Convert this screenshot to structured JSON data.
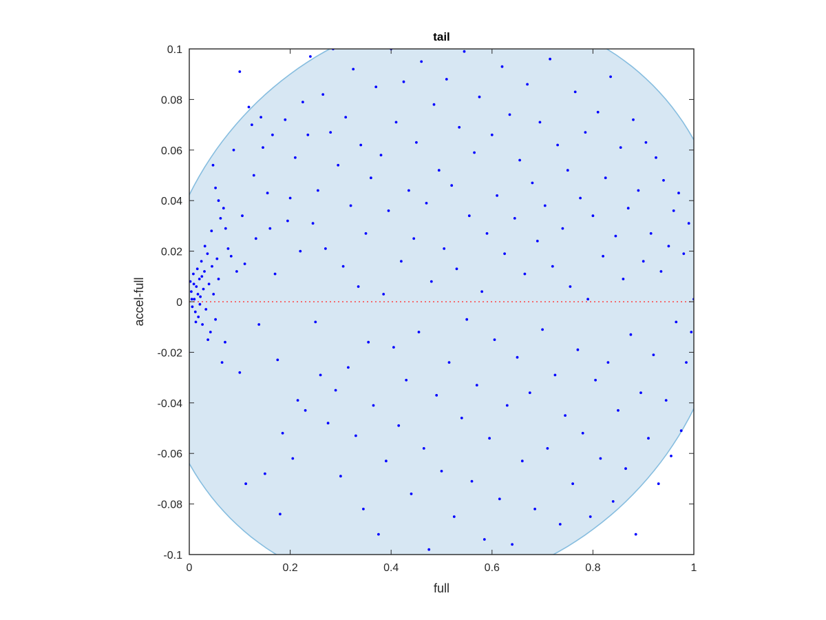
{
  "chart_data": {
    "type": "scatter",
    "title": "tail",
    "xlabel": "full",
    "ylabel": "accel-full",
    "xlim": [
      0,
      1
    ],
    "ylim": [
      -0.1,
      0.1
    ],
    "x_ticks": [
      "0",
      "0.2",
      "0.4",
      "0.6",
      "0.8",
      "1"
    ],
    "y_ticks": [
      "-0.1",
      "-0.08",
      "-0.06",
      "-0.04",
      "-0.02",
      "0",
      "0.02",
      "0.04",
      "0.06",
      "0.08",
      "0.1"
    ],
    "grid": false,
    "legend": "none",
    "colors": {
      "points": "#0000ff",
      "region_fill": "#d7e7f3",
      "region_edge": "#86bddf",
      "zero_line": "#ff4040"
    },
    "reference_line": {
      "y": 0,
      "style": "dotted"
    },
    "region": {
      "shape": "ellipse",
      "center": [
        0.5,
        0
      ],
      "semi_axis_x": 0.54,
      "semi_axis_y": 0.12,
      "tilt_note": "tilted, passes (0, 0.06), (0.28, -0.1), (1, -0.06), (0.71, 0.1)"
    },
    "series": [
      {
        "points": [
          [
            0.002,
            0.008
          ],
          [
            0.004,
            0.004
          ],
          [
            0.006,
            -0.002
          ],
          [
            0.008,
            0.011
          ],
          [
            0.01,
            0.001
          ],
          [
            0.012,
            -0.004
          ],
          [
            0.014,
            0.006
          ],
          [
            0.016,
            0.013
          ],
          [
            0.018,
            -0.006
          ],
          [
            0.02,
            0.009
          ],
          [
            0.022,
            0.002
          ],
          [
            0.024,
            0.016
          ],
          [
            0.026,
            -0.009
          ],
          [
            0.028,
            0.005
          ],
          [
            0.03,
            0.012
          ],
          [
            0.033,
            -0.003
          ],
          [
            0.036,
            0.019
          ],
          [
            0.039,
            0.007
          ],
          [
            0.042,
            -0.012
          ],
          [
            0.045,
            0.014
          ],
          [
            0.048,
            0.003
          ],
          [
            0.052,
            -0.007
          ],
          [
            0.055,
            0.017
          ],
          [
            0.058,
            0.009
          ],
          [
            0.005,
            0.001
          ],
          [
            0.009,
            0.007
          ],
          [
            0.013,
            -0.008
          ],
          [
            0.017,
            0.003
          ],
          [
            0.021,
            -0.001
          ],
          [
            0.025,
            0.01
          ],
          [
            0.031,
            0.022
          ],
          [
            0.037,
            -0.015
          ],
          [
            0.044,
            0.028
          ],
          [
            0.047,
            0.054
          ],
          [
            0.052,
            0.045
          ],
          [
            0.058,
            0.04
          ],
          [
            0.062,
            0.033
          ],
          [
            0.068,
            0.037
          ],
          [
            0.072,
            0.029
          ],
          [
            0.065,
            -0.024
          ],
          [
            0.071,
            -0.016
          ],
          [
            0.077,
            0.021
          ],
          [
            0.083,
            0.018
          ],
          [
            0.088,
            0.06
          ],
          [
            0.094,
            0.012
          ],
          [
            0.1,
            -0.028
          ],
          [
            0.1,
            0.091
          ],
          [
            0.105,
            0.034
          ],
          [
            0.11,
            0.015
          ],
          [
            0.112,
            -0.072
          ],
          [
            0.118,
            0.077
          ],
          [
            0.124,
            0.07
          ],
          [
            0.128,
            0.05
          ],
          [
            0.132,
            0.025
          ],
          [
            0.138,
            -0.009
          ],
          [
            0.142,
            0.073
          ],
          [
            0.146,
            0.061
          ],
          [
            0.15,
            -0.068
          ],
          [
            0.155,
            0.043
          ],
          [
            0.16,
            0.029
          ],
          [
            0.165,
            0.066
          ],
          [
            0.17,
            0.011
          ],
          [
            0.175,
            -0.023
          ],
          [
            0.18,
            -0.084
          ],
          [
            0.185,
            -0.052
          ],
          [
            0.19,
            0.072
          ],
          [
            0.195,
            0.032
          ],
          [
            0.2,
            0.041
          ],
          [
            0.205,
            -0.062
          ],
          [
            0.21,
            0.057
          ],
          [
            0.215,
            -0.039
          ],
          [
            0.22,
            0.02
          ],
          [
            0.225,
            0.079
          ],
          [
            0.23,
            -0.043
          ],
          [
            0.235,
            0.066
          ],
          [
            0.24,
            0.097
          ],
          [
            0.245,
            0.031
          ],
          [
            0.25,
            -0.008
          ],
          [
            0.255,
            0.044
          ],
          [
            0.26,
            -0.029
          ],
          [
            0.265,
            0.082
          ],
          [
            0.27,
            0.021
          ],
          [
            0.275,
            -0.048
          ],
          [
            0.28,
            0.067
          ],
          [
            0.285,
            0.1
          ],
          [
            0.29,
            -0.035
          ],
          [
            0.295,
            0.054
          ],
          [
            0.3,
            -0.069
          ],
          [
            0.305,
            0.014
          ],
          [
            0.31,
            0.073
          ],
          [
            0.315,
            -0.026
          ],
          [
            0.32,
            0.038
          ],
          [
            0.325,
            0.092
          ],
          [
            0.33,
            -0.053
          ],
          [
            0.335,
            0.006
          ],
          [
            0.34,
            0.062
          ],
          [
            0.345,
            -0.082
          ],
          [
            0.35,
            0.027
          ],
          [
            0.355,
            -0.016
          ],
          [
            0.36,
            0.049
          ],
          [
            0.365,
            -0.041
          ],
          [
            0.37,
            0.085
          ],
          [
            0.375,
            -0.092
          ],
          [
            0.38,
            0.058
          ],
          [
            0.385,
            0.003
          ],
          [
            0.39,
            -0.063
          ],
          [
            0.395,
            0.036
          ],
          [
            0.4,
            0.1
          ],
          [
            0.405,
            -0.018
          ],
          [
            0.41,
            0.071
          ],
          [
            0.415,
            -0.049
          ],
          [
            0.42,
            0.016
          ],
          [
            0.425,
            0.087
          ],
          [
            0.43,
            -0.031
          ],
          [
            0.435,
            0.044
          ],
          [
            0.44,
            -0.076
          ],
          [
            0.445,
            0.025
          ],
          [
            0.45,
            0.063
          ],
          [
            0.455,
            -0.012
          ],
          [
            0.46,
            0.095
          ],
          [
            0.465,
            -0.058
          ],
          [
            0.47,
            0.039
          ],
          [
            0.475,
            -0.098
          ],
          [
            0.48,
            0.008
          ],
          [
            0.485,
            0.078
          ],
          [
            0.49,
            -0.037
          ],
          [
            0.495,
            0.052
          ],
          [
            0.5,
            -0.067
          ],
          [
            0.505,
            0.021
          ],
          [
            0.51,
            0.088
          ],
          [
            0.515,
            -0.024
          ],
          [
            0.52,
            0.046
          ],
          [
            0.525,
            -0.085
          ],
          [
            0.53,
            0.013
          ],
          [
            0.535,
            0.069
          ],
          [
            0.54,
            -0.046
          ],
          [
            0.545,
            0.099
          ],
          [
            0.55,
            -0.007
          ],
          [
            0.555,
            0.034
          ],
          [
            0.56,
            -0.071
          ],
          [
            0.565,
            0.059
          ],
          [
            0.57,
            -0.033
          ],
          [
            0.575,
            0.081
          ],
          [
            0.58,
            0.004
          ],
          [
            0.585,
            -0.094
          ],
          [
            0.59,
            0.027
          ],
          [
            0.595,
            -0.054
          ],
          [
            0.6,
            0.066
          ],
          [
            0.605,
            -0.015
          ],
          [
            0.61,
            0.042
          ],
          [
            0.615,
            -0.078
          ],
          [
            0.62,
            0.093
          ],
          [
            0.625,
            0.019
          ],
          [
            0.63,
            -0.041
          ],
          [
            0.635,
            0.074
          ],
          [
            0.64,
            -0.096
          ],
          [
            0.645,
            0.033
          ],
          [
            0.65,
            -0.022
          ],
          [
            0.655,
            0.056
          ],
          [
            0.66,
            -0.063
          ],
          [
            0.665,
            0.011
          ],
          [
            0.67,
            0.086
          ],
          [
            0.675,
            -0.036
          ],
          [
            0.68,
            0.047
          ],
          [
            0.685,
            -0.082
          ],
          [
            0.69,
            0.024
          ],
          [
            0.695,
            0.071
          ],
          [
            0.7,
            -0.011
          ],
          [
            0.705,
            0.038
          ],
          [
            0.71,
            -0.058
          ],
          [
            0.715,
            0.096
          ],
          [
            0.72,
            0.014
          ],
          [
            0.725,
            -0.029
          ],
          [
            0.73,
            0.062
          ],
          [
            0.735,
            -0.088
          ],
          [
            0.74,
            0.029
          ],
          [
            0.745,
            -0.045
          ],
          [
            0.75,
            0.052
          ],
          [
            0.755,
            0.006
          ],
          [
            0.76,
            -0.072
          ],
          [
            0.765,
            0.083
          ],
          [
            0.77,
            -0.019
          ],
          [
            0.775,
            0.041
          ],
          [
            0.78,
            -0.052
          ],
          [
            0.785,
            0.067
          ],
          [
            0.79,
            0.001
          ],
          [
            0.795,
            -0.085
          ],
          [
            0.8,
            0.034
          ],
          [
            0.805,
            -0.031
          ],
          [
            0.81,
            0.075
          ],
          [
            0.815,
            -0.062
          ],
          [
            0.82,
            0.018
          ],
          [
            0.825,
            0.049
          ],
          [
            0.83,
            -0.024
          ],
          [
            0.835,
            0.089
          ],
          [
            0.84,
            -0.079
          ],
          [
            0.845,
            0.026
          ],
          [
            0.85,
            -0.043
          ],
          [
            0.855,
            0.061
          ],
          [
            0.86,
            0.009
          ],
          [
            0.865,
            -0.066
          ],
          [
            0.87,
            0.037
          ],
          [
            0.875,
            -0.013
          ],
          [
            0.88,
            0.072
          ],
          [
            0.885,
            -0.092
          ],
          [
            0.89,
            0.044
          ],
          [
            0.895,
            -0.036
          ],
          [
            0.9,
            0.016
          ],
          [
            0.905,
            0.063
          ],
          [
            0.91,
            -0.054
          ],
          [
            0.915,
            0.027
          ],
          [
            0.92,
            -0.021
          ],
          [
            0.925,
            0.057
          ],
          [
            0.93,
            -0.072
          ],
          [
            0.935,
            0.012
          ],
          [
            0.94,
            0.048
          ],
          [
            0.945,
            -0.039
          ],
          [
            0.95,
            0.022
          ],
          [
            0.955,
            -0.061
          ],
          [
            0.96,
            0.036
          ],
          [
            0.965,
            -0.008
          ],
          [
            0.97,
            0.043
          ],
          [
            0.975,
            -0.051
          ],
          [
            0.98,
            0.019
          ],
          [
            0.985,
            -0.024
          ],
          [
            0.99,
            0.031
          ],
          [
            0.995,
            -0.012
          ],
          [
            1.0,
            0.001
          ]
        ]
      }
    ]
  }
}
